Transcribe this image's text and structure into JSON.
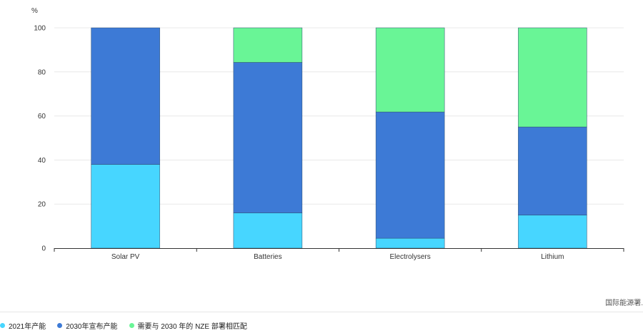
{
  "chart_data": {
    "type": "bar",
    "stacked": true,
    "unit": "%",
    "categories": [
      "Solar PV",
      "Batteries",
      "Electrolysers",
      "Lithium"
    ],
    "series": [
      {
        "name": "2021年产能",
        "color": "#47d6ff",
        "values": [
          38,
          16,
          4.5,
          15
        ]
      },
      {
        "name": "2030年宣布产能",
        "color": "#3d7ad6",
        "values": [
          62,
          68.3,
          57.3,
          40
        ]
      },
      {
        "name": "需要与 2030 年的 NZE 部署相匹配",
        "color": "#69f596",
        "values": [
          0,
          15.7,
          38.2,
          45
        ]
      }
    ],
    "yticks": [
      0,
      20,
      40,
      60,
      80,
      100
    ],
    "ylim": [
      0,
      100
    ],
    "grid": true,
    "legend_position": "bottom-left"
  },
  "source": "国际能源署."
}
